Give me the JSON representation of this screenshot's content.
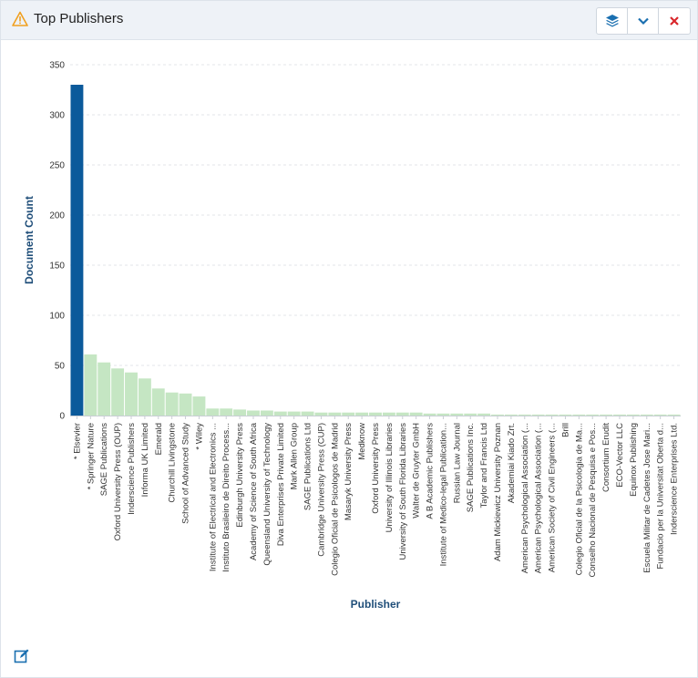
{
  "panel": {
    "title": "Top Publishers",
    "icons": {
      "title": "warning-icon",
      "layers": "layers-icon",
      "collapse": "chevron-down-icon",
      "close": "close-icon",
      "edit": "edit-icon"
    }
  },
  "colors": {
    "highlight": "#0b5a9b",
    "bar": "#c5e6c3",
    "axis_title": "#1f4e79",
    "grid": "#e3e6ea"
  },
  "chart_data": {
    "type": "bar",
    "xlabel": "Publisher",
    "ylabel": "Document Count",
    "ylim": [
      0,
      350
    ],
    "yticks": [
      0,
      50,
      100,
      150,
      200,
      250,
      300,
      350
    ],
    "grid": true,
    "highlight_index": 0,
    "categories": [
      "* Elsevier",
      "* Springer Nature",
      "SAGE Publications",
      "Oxford University Press (OUP)",
      "Inderscience Publishers",
      "Informa UK Limited",
      "Emerald",
      "Churchill Livingstone",
      "School of Advanced Study",
      "* Wiley",
      "Institute of Electrical and Electronics ...",
      "Instituto Brasileiro de Direito Process...",
      "Edinburgh University Press",
      "Academy of Science of South Africa",
      "Queensland University of Technology",
      "Diva Enterprises Private Limited",
      "Mark Allen Group",
      "SAGE Publications Ltd",
      "Cambridge University Press (CUP)",
      "Colegio Oficial de Psicologos de Madrid",
      "Masaryk University Press",
      "Medknow",
      "Oxford University Press",
      "University of Illinois Libraries",
      "University of South Florida Libraries",
      "Walter de Gruyter GmbH",
      "A B Academic Publishers",
      "Institute of Medico-legal Publication...",
      "Russian Law Journal",
      "SAGE Publications Inc.",
      "Taylor and Francis Ltd",
      "Adam Mickiewicz University Poznan",
      "Akademiai Kiado Zrt.",
      "American Psychological Association (...",
      "American Psychological Association (...",
      "American Society of Civil Engineers (...",
      "Brill",
      "Colegio Oficial de la Psicologia de Ma...",
      "Conselho Nacional de Pesquisa e Pos...",
      "Consortium Erudit",
      "ECO-Vector LLC",
      "Equinox Publishing",
      "Escuela Militar de Cadetes Jose Mari...",
      "Fundacio per la Universitat Oberta d...",
      "Inderscience Enterprises Ltd."
    ],
    "values": [
      330,
      61,
      53,
      47,
      43,
      37,
      27,
      23,
      22,
      19,
      7,
      7,
      6,
      5,
      5,
      4,
      4,
      4,
      3,
      3,
      3,
      3,
      3,
      3,
      3,
      3,
      2,
      2,
      2,
      2,
      2,
      1,
      1,
      1,
      1,
      1,
      1,
      1,
      1,
      1,
      1,
      1,
      1,
      1,
      1
    ]
  }
}
